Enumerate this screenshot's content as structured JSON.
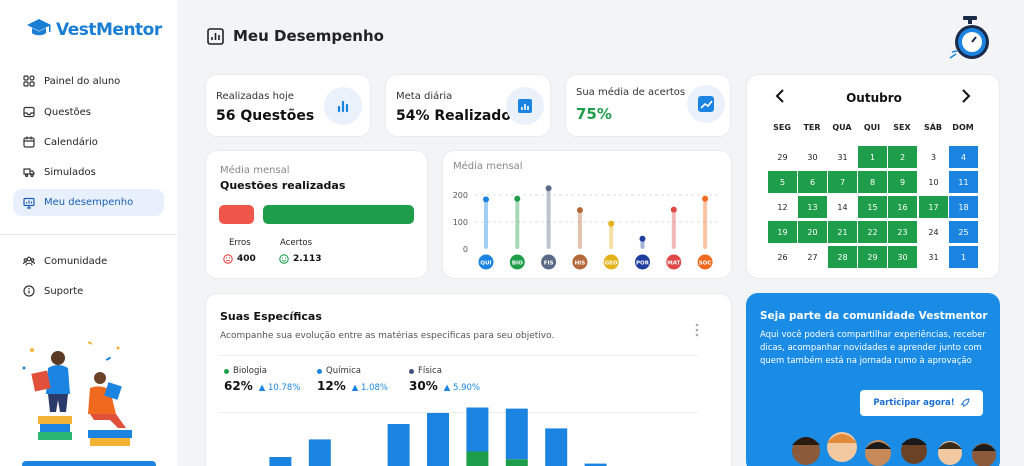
{
  "app": {
    "name": "VestMentor"
  },
  "sidebar": {
    "items": [
      {
        "label": "Painel do aluno",
        "icon": "grid-icon"
      },
      {
        "label": "Questões",
        "icon": "inbox-icon"
      },
      {
        "label": "Calendário",
        "icon": "calendar-icon"
      },
      {
        "label": "Simulados",
        "icon": "truck-icon"
      },
      {
        "label": "Meu desempenho",
        "icon": "monitor-chart-icon",
        "active": true
      }
    ],
    "secondary": [
      {
        "label": "Comunidade",
        "icon": "community-icon"
      },
      {
        "label": "Suporte",
        "icon": "info-icon"
      }
    ]
  },
  "header": {
    "title": "Meu Desempenho"
  },
  "stats": [
    {
      "label": "Realizadas hoje",
      "value": "56 Questões"
    },
    {
      "label": "Meta diária",
      "value": "54% Realizado"
    },
    {
      "label": "Sua média de acertos",
      "value": "75%"
    }
  ],
  "calendar": {
    "month": "Outubro",
    "weekdays": [
      "SEG",
      "TER",
      "QUA",
      "QUI",
      "SEX",
      "SÁB",
      "DOM"
    ],
    "rows": [
      [
        [
          "29",
          ""
        ],
        [
          "30",
          ""
        ],
        [
          "31",
          ""
        ],
        [
          "1",
          "g"
        ],
        [
          "2",
          "g"
        ],
        [
          "3",
          ""
        ],
        [
          "4",
          "b"
        ]
      ],
      [
        [
          "5",
          "g"
        ],
        [
          "6",
          "g"
        ],
        [
          "7",
          "g"
        ],
        [
          "8",
          "g"
        ],
        [
          "9",
          "g"
        ],
        [
          "10",
          ""
        ],
        [
          "11",
          "b"
        ]
      ],
      [
        [
          "12",
          ""
        ],
        [
          "13",
          "g"
        ],
        [
          "14",
          ""
        ],
        [
          "15",
          "g"
        ],
        [
          "16",
          "g"
        ],
        [
          "17",
          "g"
        ],
        [
          "18",
          "b"
        ]
      ],
      [
        [
          "19",
          "g"
        ],
        [
          "20",
          "g"
        ],
        [
          "21",
          "g"
        ],
        [
          "22",
          "g"
        ],
        [
          "23",
          "g"
        ],
        [
          "24",
          ""
        ],
        [
          "25",
          "b"
        ]
      ],
      [
        [
          "26",
          ""
        ],
        [
          "27",
          ""
        ],
        [
          "28",
          "g"
        ],
        [
          "29",
          "g"
        ],
        [
          "30",
          "g"
        ],
        [
          "31",
          ""
        ],
        [
          "1",
          "b"
        ]
      ]
    ]
  },
  "monthly": {
    "subtitle": "Média mensal",
    "title": "Questões realizadas",
    "errors_label": "Erros",
    "errors_value": "400",
    "hits_label": "Acertos",
    "hits_value": "2.113",
    "error_color": "#f0554a",
    "hit_color": "#1e9e4a"
  },
  "monthly_chart": {
    "subtitle": "Média mensal"
  },
  "chart_data": [
    {
      "type": "bar",
      "title": "Média mensal",
      "categories": [
        "QUI",
        "BIO",
        "FIS",
        "HIS",
        "GEO",
        "POR",
        "MAT",
        "SOC"
      ],
      "values": [
        184,
        186,
        225,
        144,
        94,
        38,
        146,
        186
      ],
      "yticks": [
        0,
        100,
        200
      ],
      "ylim": [
        0,
        230
      ],
      "colors": [
        "#1a84e0",
        "#1e9e4a",
        "#5b6b86",
        "#b5683a",
        "#e3b21b",
        "#1f3d9e",
        "#e04848",
        "#ef6a1f"
      ]
    },
    {
      "type": "bar",
      "title": "Suas Específicas",
      "stacked": true,
      "series": [
        {
          "name": "green",
          "color": "#1e9e4a",
          "values": [
            0,
            4,
            8,
            0,
            10,
            10,
            25,
            18,
            10,
            0
          ]
        },
        {
          "name": "blue",
          "color": "#1a84e0",
          "values": [
            5,
            16,
            28,
            11,
            40,
            50,
            40,
            46,
            36,
            14
          ]
        }
      ],
      "ylim": [
        0,
        70
      ]
    }
  ],
  "specificas": {
    "title": "Suas Específicas",
    "subtitle": "Acompanhe sua evolução entre as matérias especificas para seu objetivo.",
    "subjects": [
      {
        "name": "Biologia",
        "pct": "62%",
        "delta": "10.78%",
        "color": "#1e9e4a"
      },
      {
        "name": "Química",
        "pct": "12%",
        "delta": "1.08%",
        "color": "#1a84e0"
      },
      {
        "name": "Física",
        "pct": "30%",
        "delta": "5.90%",
        "color": "#3d4f7a"
      }
    ]
  },
  "community": {
    "title": "Seja parte da comunidade Vestmentor",
    "text": "Aqui você poderá compartilhar experiências, receber dicas, acompanhar novidades e aprender junto com quem também está na jornada rumo à aprovação",
    "button": "Participar agora!"
  }
}
